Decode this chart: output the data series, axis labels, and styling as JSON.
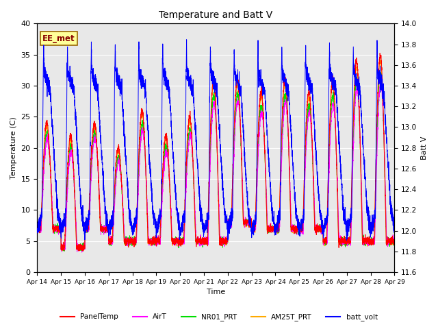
{
  "title": "Temperature and Batt V",
  "xlabel": "Time",
  "ylabel_left": "Temperature (C)",
  "ylabel_right": "Batt V",
  "annotation": "EE_met",
  "ylim_left": [
    0,
    40
  ],
  "ylim_right": [
    11.6,
    14.0
  ],
  "x_tick_labels": [
    "Apr 14",
    "Apr 15",
    "Apr 16",
    "Apr 17",
    "Apr 18",
    "Apr 19",
    "Apr 20",
    "Apr 21",
    "Apr 22",
    "Apr 23",
    "Apr 24",
    "Apr 25",
    "Apr 26",
    "Apr 27",
    "Apr 28",
    "Apr 29"
  ],
  "legend_entries": [
    {
      "label": "PanelTemp",
      "color": "#ff0000"
    },
    {
      "label": "AirT",
      "color": "#ff00ff"
    },
    {
      "label": "NR01_PRT",
      "color": "#00dd00"
    },
    {
      "label": "AM25T_PRT",
      "color": "#ffaa00"
    },
    {
      "label": "batt_volt",
      "color": "#0000ff"
    }
  ],
  "bg_color": "#e8e8e8",
  "n_days": 15,
  "points_per_day": 288,
  "seed": 7
}
